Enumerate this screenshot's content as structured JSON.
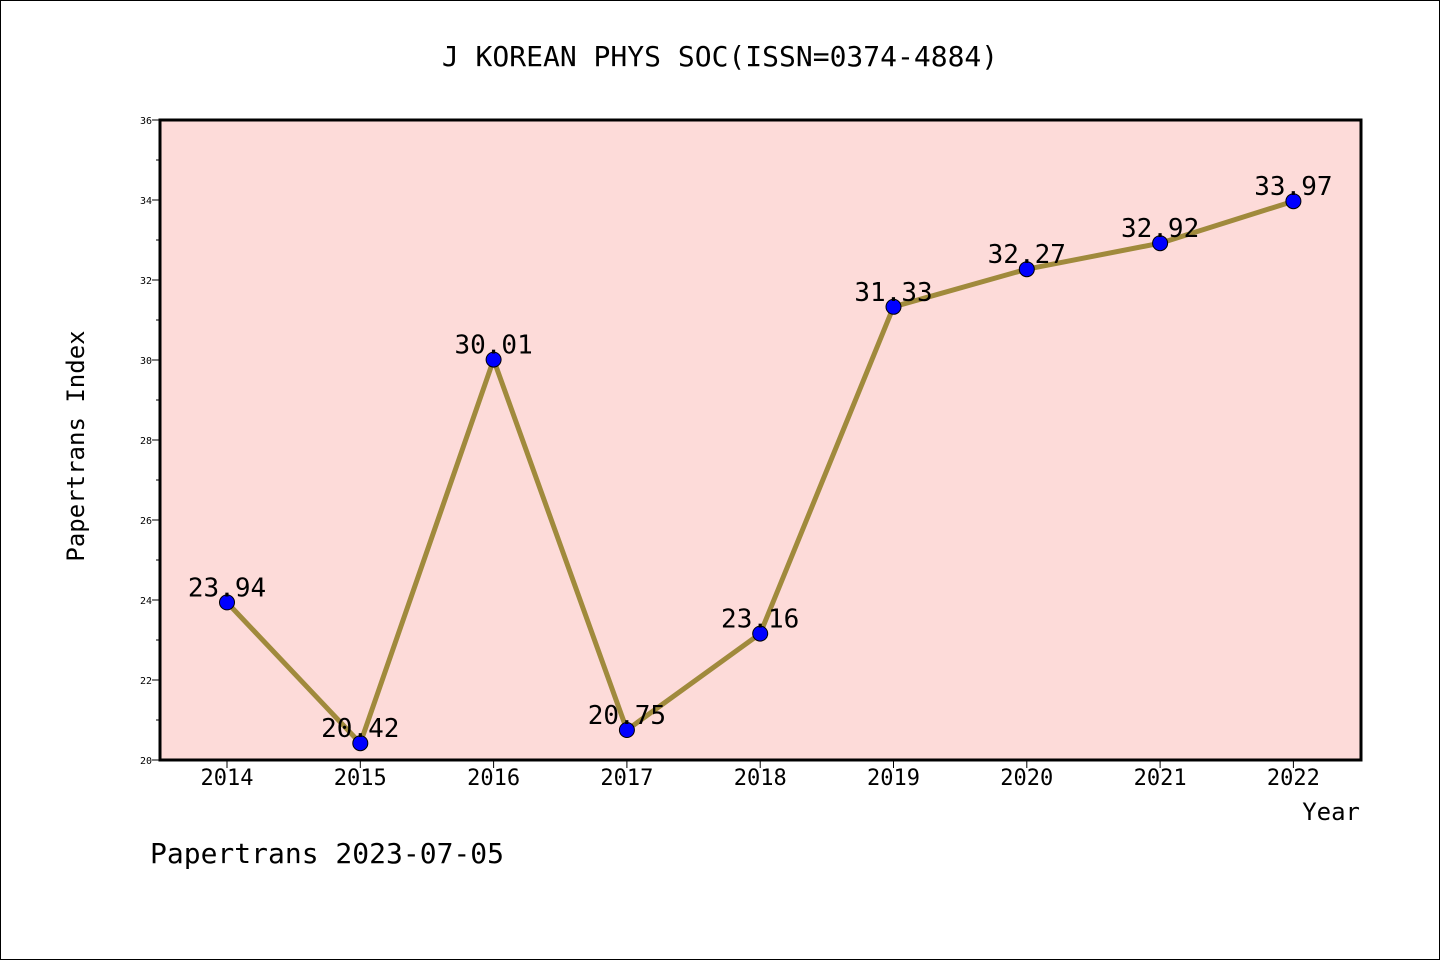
{
  "chart_data": {
    "type": "line",
    "title": "J KOREAN PHYS SOC(ISSN=0374-4884)",
    "xlabel": "Year",
    "ylabel": "Papertrans Index",
    "categories": [
      "2014",
      "2015",
      "2016",
      "2017",
      "2018",
      "2019",
      "2020",
      "2021",
      "2022"
    ],
    "series": [
      {
        "values": [
          23.94,
          20.42,
          30.01,
          20.75,
          23.16,
          31.33,
          32.27,
          32.92,
          33.97
        ]
      }
    ],
    "data_labels": [
      "23.94",
      "20.42",
      "30.01",
      "20.75",
      "23.16",
      "31.33",
      "32.27",
      "32.92",
      "33.97"
    ],
    "ylim": [
      20,
      36
    ],
    "yticks": [
      20,
      22,
      24,
      26,
      28,
      30,
      32,
      34,
      36
    ],
    "grid": false,
    "legend": "none",
    "colors": {
      "plot_background": "#fddbd9",
      "line": "#a08a3c",
      "marker": "#0000ff"
    }
  },
  "footer": "Papertrans 2023-07-05"
}
